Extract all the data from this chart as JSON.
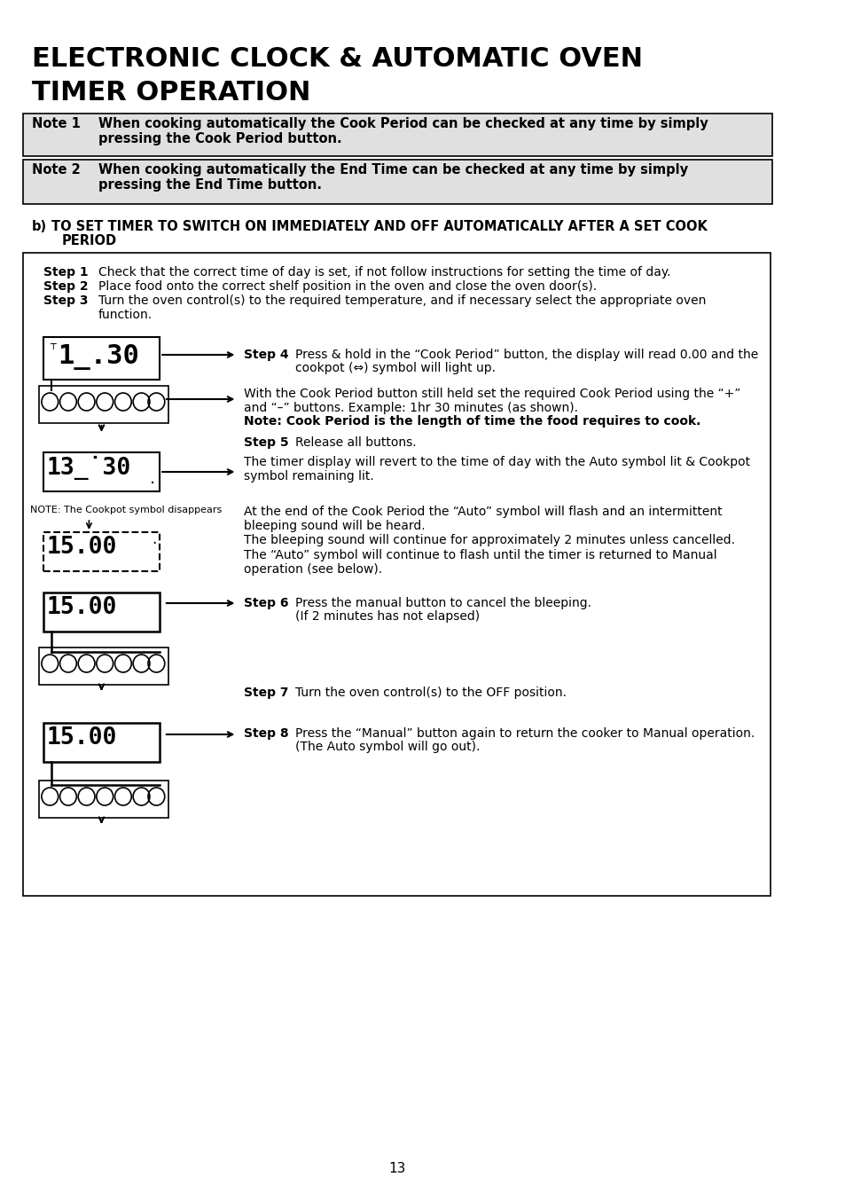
{
  "title_line1": "ELECTRONIC CLOCK & AUTOMATIC OVEN",
  "title_line2": "TIMER OPERATION",
  "note1_label": "Note 1",
  "note1_text": "When cooking automatically the Cook Period can be checked at any time by simply\npressing the Cook Period button.",
  "note2_label": "Note 2",
  "note2_text": "When cooking automatically the End Time can be checked at any time by simply\npressing the End Time button.",
  "section_b": "b) TO SET TIMER TO SWITCH ON IMMEDIATELY AND OFF AUTOMATICALLY AFTER A SET COOK\n   PERIOD",
  "step1": "Check that the correct time of day is set, if not follow instructions for setting the time of day.",
  "step2": "Place food onto the correct shelf position in the oven and close the oven door(s).",
  "step3": "Turn the oven control(s) to the required temperature, and if necessary select the appropriate oven\nfunction.",
  "step4_label": "Step 4",
  "step4_text": "Press & hold in the “Cook Period” button, the display will read 0.00 and the\ncookpot (⇔) symbol will light up.",
  "step4b_text": "With the Cook Period button still held set the required Cook Period using the “+”\nand “–” buttons. Example: 1hr 30 minutes (as shown).",
  "note_cook": "Note: Cook Period is the length of time the food requires to cook.",
  "step5_label": "Step 5",
  "step5_text": "Release all buttons.",
  "step5b_text": "The timer display will revert to the time of day with the Auto symbol lit & Cookpot\nsymbol remaining lit.",
  "note_cookpot": "NOTE: The Cookpot symbol disappears",
  "step5c_text": "At the end of the Cook Period the “Auto” symbol will flash and an intermittent\nbleeping sound will be heard.\nThe bleeping sound will continue for approximately 2 minutes unless cancelled.\nThe “Auto” symbol will continue to flash until the timer is returned to Manual\noperation (see below).",
  "step6_label": "Step 6",
  "step6_text": "Press the manual button to cancel the bleeping.\n(If 2 minutes has not elapsed)",
  "step7_label": "Step 7",
  "step7_text": "Turn the oven control(s) to the OFF position.",
  "step8_label": "Step 8",
  "step8_text": "Press the “Manual” button again to return the cooker to Manual operation.\n(The Auto symbol will go out).",
  "page_num": "13",
  "bg_color": "#ffffff",
  "note_bg": "#e8e8e8",
  "box_border": "#000000"
}
